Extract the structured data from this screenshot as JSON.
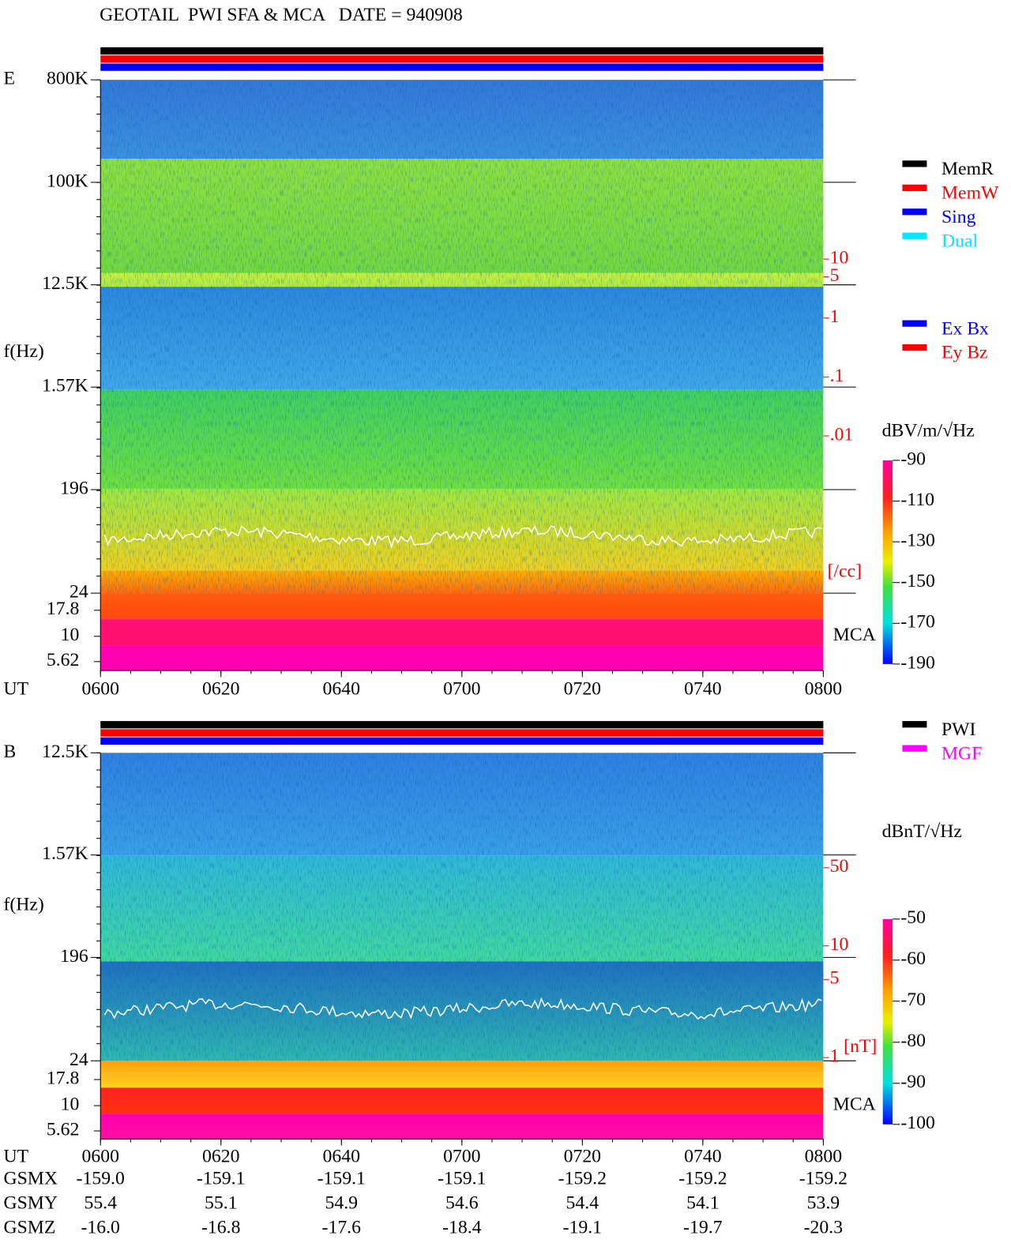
{
  "title": "GEOTAIL  PWI SFA & MCA   DATE = 940908",
  "panels": [
    {
      "label": "E",
      "y_label": "f(Hz)",
      "x_label": "UT",
      "mca_label": "MCA",
      "flim": [
        24,
        800000
      ],
      "freq_ticks": [
        {
          "value": 800000,
          "label": "800K"
        },
        {
          "value": 100000,
          "label": "100K"
        },
        {
          "value": 12500,
          "label": "12.5K"
        },
        {
          "value": 1570,
          "label": "1.57K"
        },
        196,
        24
      ],
      "mca_ticks": [
        "17.8",
        "10",
        "5.62"
      ],
      "x_ticks": [
        "0600",
        "0620",
        "0640",
        "0700",
        "0720",
        "0740",
        "0800"
      ],
      "colorbar": {
        "unit": "dBV/m/√Hz",
        "clim": [
          -190,
          -90
        ],
        "ticks": [
          -90,
          -110,
          -130,
          -150,
          -170,
          -190
        ]
      },
      "density": {
        "unit": "[/cc]",
        "lim": [
          0.01,
          10
        ],
        "ticks": [
          10,
          5,
          1,
          {
            "value": 0.1,
            "label": ".1"
          },
          {
            "value": 0.01,
            "label": ".01"
          }
        ]
      },
      "legend": [
        {
          "name": "MemR",
          "color": "#000000"
        },
        {
          "name": "MemW",
          "color": "#ff0000"
        },
        {
          "name": "Sing",
          "color": "#0000ff"
        },
        {
          "name": "Dual",
          "color": "#00e8ff"
        }
      ],
      "legend2": [
        {
          "name": "Ex Bx",
          "color": "#0000ff"
        },
        {
          "name": "Ey Bz",
          "color": "#ff0000"
        }
      ]
    },
    {
      "label": "B",
      "y_label": "f(Hz)",
      "x_label": "UT",
      "mca_label": "MCA",
      "flim": [
        24,
        12500
      ],
      "freq_ticks": [
        {
          "value": 12500,
          "label": "12.5K"
        },
        {
          "value": 1570,
          "label": "1.57K"
        },
        196,
        24
      ],
      "mca_ticks": [
        "17.8",
        "10",
        "5.62"
      ],
      "x_ticks": [
        "0600",
        "0620",
        "0640",
        "0700",
        "0720",
        "0740",
        "0800"
      ],
      "colorbar": {
        "unit": "dBnT/√Hz",
        "clim": [
          -100,
          -50
        ],
        "ticks": [
          -50,
          -60,
          -70,
          -80,
          -90,
          -100
        ]
      },
      "density": {
        "unit": "[nT]",
        "lim": [
          1,
          50
        ],
        "ticks": [
          50,
          10,
          5,
          1
        ]
      },
      "legend": [
        {
          "name": "PWI",
          "color": "#000000"
        },
        {
          "name": "MGF",
          "color": "#ff00ff"
        }
      ]
    }
  ],
  "orbit": [
    {
      "name": "GSMX",
      "values": [
        "-159.0",
        "-159.1",
        "-159.1",
        "-159.1",
        "-159.2",
        "-159.2",
        "-159.2"
      ]
    },
    {
      "name": "GSMY",
      "values": [
        "55.4",
        "55.1",
        "54.9",
        "54.6",
        "54.4",
        "54.1",
        "53.9"
      ]
    },
    {
      "name": "GSMZ",
      "values": [
        "-16.0",
        "-16.8",
        "-17.6",
        "-18.4",
        "-19.1",
        "-19.7",
        "-20.3"
      ]
    }
  ]
}
